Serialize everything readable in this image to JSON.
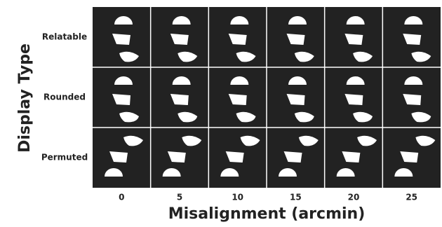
{
  "y_axis": {
    "title": "Display Type"
  },
  "x_axis": {
    "title": "Misalignment (arcmin)"
  },
  "rows": [
    "Relatable",
    "Rounded",
    "Permuted"
  ],
  "columns": [
    "0",
    "5",
    "10",
    "15",
    "20",
    "25"
  ]
}
